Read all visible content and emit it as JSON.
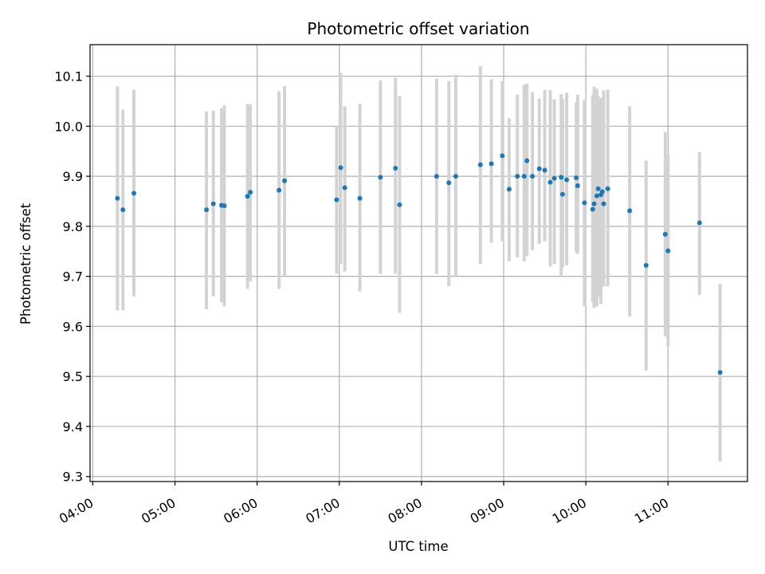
{
  "chart_data": {
    "type": "scatter",
    "title": "Photometric offset variation",
    "xlabel": "UTC time",
    "ylabel": "Photometric offset",
    "x_axis_type": "time",
    "xlim": [
      "03:58",
      "11:58"
    ],
    "ylim": [
      9.29,
      10.163
    ],
    "x_ticks": [
      "04:00",
      "05:00",
      "06:00",
      "07:00",
      "08:00",
      "09:00",
      "10:00",
      "11:00"
    ],
    "y_ticks": [
      9.3,
      9.4,
      9.5,
      9.6,
      9.7,
      9.8,
      9.9,
      10.0,
      10.1
    ],
    "y_tick_labels": [
      "9.3",
      "9.4",
      "9.5",
      "9.6",
      "9.7",
      "9.8",
      "9.9",
      "10.0",
      "10.1"
    ],
    "grid": true,
    "colors": {
      "point": "#1f77b4",
      "errorbar": "#d3d3d3",
      "grid": "#b0b0b0",
      "frame": "#000000"
    },
    "series": [
      {
        "x": [
          "04:18",
          "04:22",
          "04:30",
          "05:23",
          "05:28",
          "05:34",
          "05:36",
          "05:53",
          "05:55",
          "06:16",
          "06:20",
          "06:58",
          "07:01",
          "07:04",
          "07:15",
          "07:30",
          "07:41",
          "07:44",
          "08:11",
          "08:20",
          "08:25",
          "08:43",
          "08:51",
          "08:59",
          "09:04",
          "09:10",
          "09:15",
          "09:17",
          "09:21",
          "09:26",
          "09:30",
          "09:34",
          "09:37",
          "09:42",
          "09:43",
          "09:46",
          "09:53",
          "09:54",
          "09:59",
          "10:05",
          "10:06",
          "10:08",
          "10:09",
          "10:11",
          "10:12",
          "10:13",
          "10:16",
          "10:32",
          "10:44",
          "10:58",
          "11:00",
          "11:23",
          "11:38"
        ],
        "y": [
          9.856,
          9.833,
          9.866,
          9.833,
          9.845,
          9.842,
          9.841,
          9.86,
          9.868,
          9.872,
          9.891,
          9.853,
          9.917,
          9.877,
          9.856,
          9.898,
          9.916,
          9.843,
          9.9,
          9.887,
          9.9,
          9.923,
          9.925,
          9.941,
          9.874,
          9.9,
          9.9,
          9.931,
          9.9,
          9.915,
          9.912,
          9.888,
          9.896,
          9.898,
          9.864,
          9.893,
          9.897,
          9.881,
          9.847,
          9.834,
          9.845,
          9.861,
          9.875,
          9.863,
          9.869,
          9.845,
          9.875,
          9.831,
          9.722,
          9.784,
          9.751,
          9.807,
          9.508
        ],
        "yerr_low": [
          9.632,
          9.632,
          9.66,
          9.634,
          9.66,
          9.648,
          9.64,
          9.675,
          9.69,
          9.675,
          9.7,
          9.705,
          9.725,
          9.71,
          9.67,
          9.705,
          9.705,
          9.627,
          9.705,
          9.68,
          9.7,
          9.725,
          9.767,
          9.77,
          9.73,
          9.738,
          9.73,
          9.74,
          9.752,
          9.765,
          9.77,
          9.72,
          9.725,
          9.7,
          9.718,
          9.722,
          9.748,
          9.745,
          9.64,
          9.648,
          9.637,
          9.64,
          9.66,
          9.645,
          9.683,
          9.68,
          9.68,
          9.62,
          9.512,
          9.58,
          9.56,
          9.663,
          9.33
        ],
        "yerr_high": [
          10.08,
          10.033,
          10.073,
          10.03,
          10.031,
          10.036,
          10.042,
          10.044,
          10.044,
          10.07,
          10.08,
          10.0,
          10.107,
          10.04,
          10.045,
          10.092,
          10.097,
          10.06,
          10.095,
          10.09,
          10.103,
          10.12,
          10.094,
          10.09,
          10.016,
          10.063,
          10.083,
          10.085,
          10.068,
          10.055,
          10.073,
          10.072,
          10.054,
          10.064,
          10.054,
          10.067,
          10.048,
          10.063,
          10.053,
          10.062,
          10.079,
          10.075,
          10.06,
          10.056,
          10.008,
          10.071,
          10.073,
          10.04,
          9.931,
          9.988,
          9.943,
          9.948,
          9.685
        ]
      }
    ]
  }
}
